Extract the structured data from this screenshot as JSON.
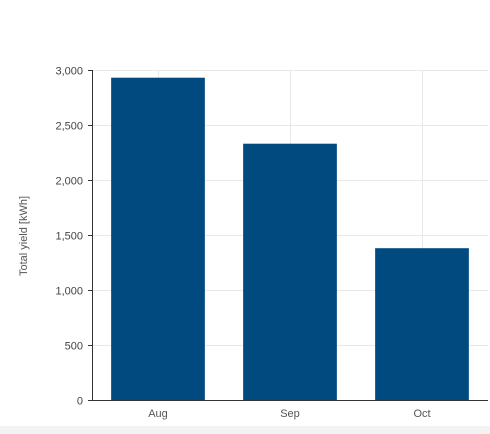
{
  "chart_data": {
    "type": "bar",
    "categories": [
      "Aug",
      "Sep",
      "Oct"
    ],
    "values": [
      2930,
      2330,
      1380
    ],
    "ylabel": "Total yield [kWh]",
    "xlabel": "",
    "ylim": [
      0,
      3000
    ],
    "yticks": [
      0,
      500,
      1000,
      1500,
      2000,
      2500,
      3000
    ],
    "ytick_labels": [
      "0",
      "500",
      "1,000",
      "1,500",
      "2,000",
      "2,500",
      "3,000"
    ],
    "grid": true,
    "bar_color": "#004a80",
    "grid_color": "#e8e8e8"
  }
}
